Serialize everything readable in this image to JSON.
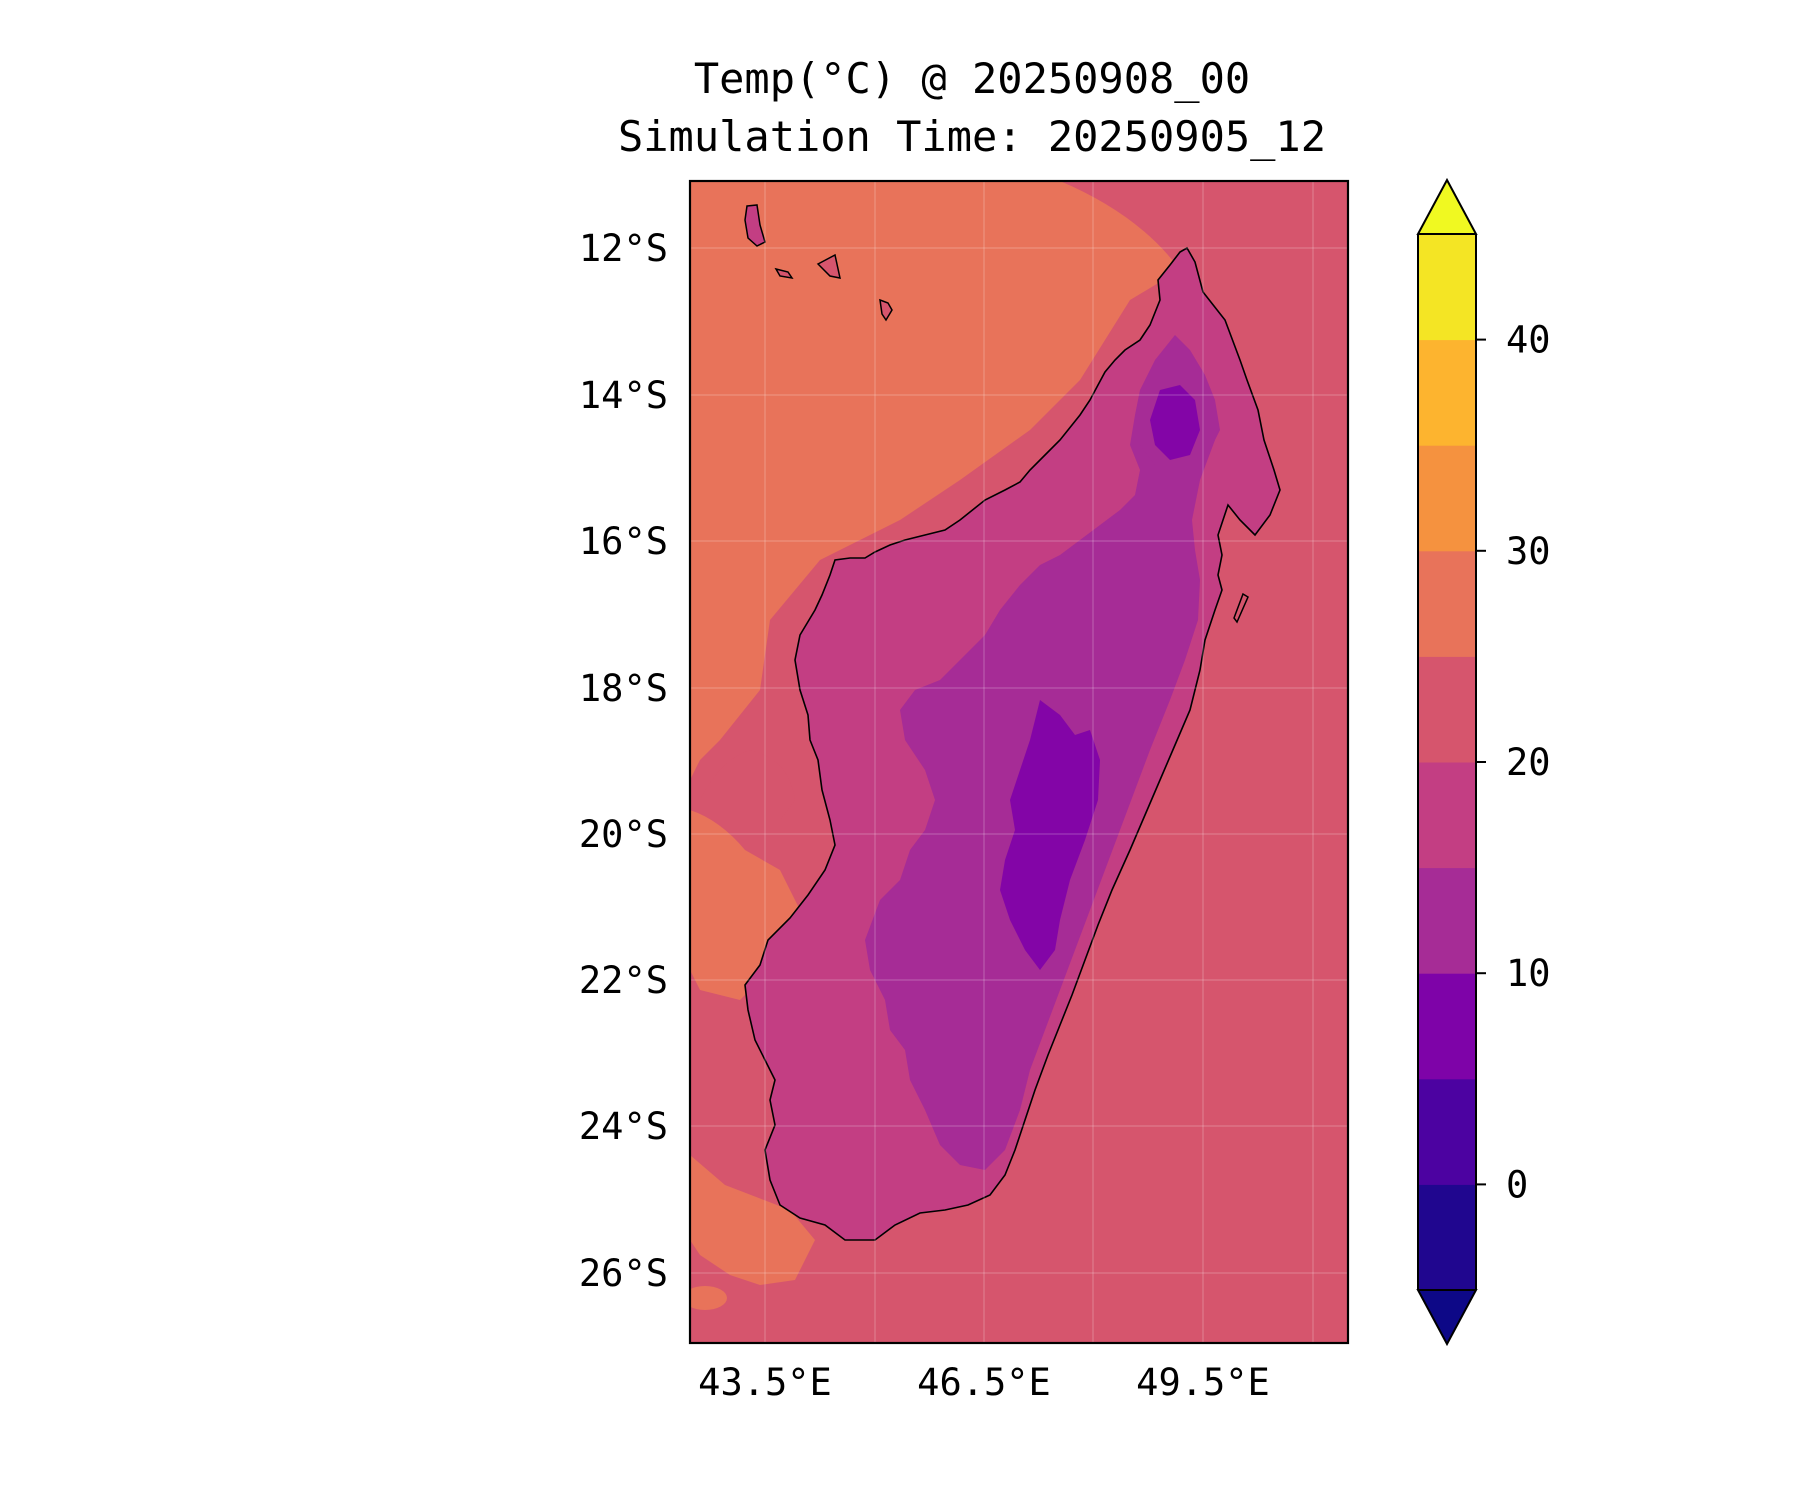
{
  "title": {
    "line1": "Temp(°C) @ 20250908_00",
    "line2": "Simulation Time: 20250905_12"
  },
  "map": {
    "region": "Madagascar",
    "lat_ticks": [
      "12°S",
      "14°S",
      "16°S",
      "18°S",
      "20°S",
      "22°S",
      "24°S",
      "26°S"
    ],
    "lon_ticks": [
      "43.5°E",
      "46.5°E",
      "49.5°E"
    ],
    "gridlines": true,
    "ocean_color": "#d6556d",
    "nw_ocean_color": "#e8735a",
    "land_colors": [
      "#c33e83",
      "#a62c96",
      "#8305a7"
    ]
  },
  "colorbar": {
    "tick_labels": [
      "40",
      "30",
      "20",
      "10",
      "0"
    ],
    "bands": [
      "#20068f",
      "#4c02a1",
      "#7e03a8",
      "#a62c96",
      "#c33e83",
      "#d6556d",
      "#e8735a",
      "#f5923f",
      "#fdb42f",
      "#f4e524"
    ],
    "under_color": "#0d0887",
    "over_color": "#f0f921",
    "extend": "both"
  }
}
